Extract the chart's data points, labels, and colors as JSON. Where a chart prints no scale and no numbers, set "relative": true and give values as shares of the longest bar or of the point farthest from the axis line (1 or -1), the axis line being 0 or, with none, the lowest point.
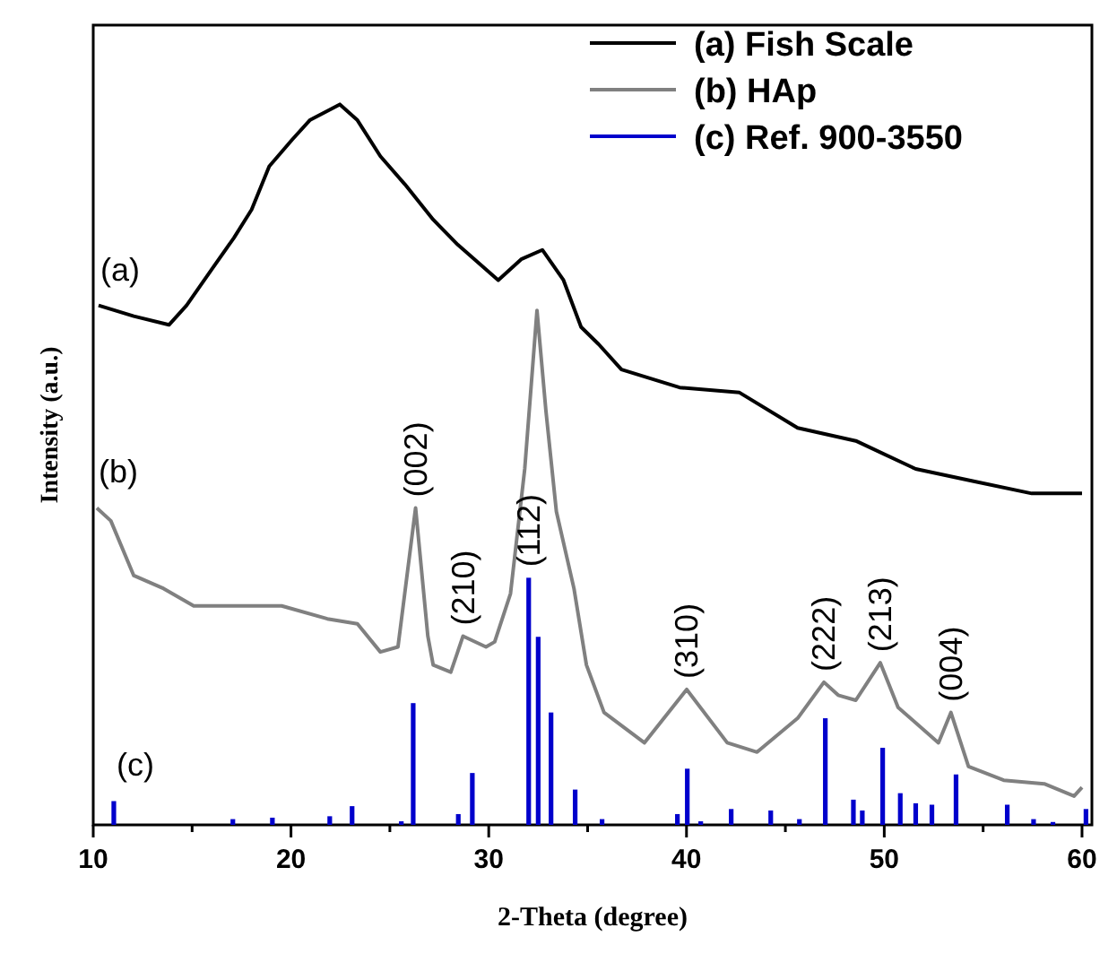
{
  "chart_data": {
    "type": "line",
    "relative": true,
    "xlabel": "2-Theta (degree)",
    "ylabel": "Intensity (a.u.)",
    "xlim": [
      10,
      60.5
    ],
    "xticks": [
      10,
      {
        "value": 15,
        "label": null
      },
      20,
      {
        "value": 25,
        "label": null
      },
      30,
      {
        "value": 35,
        "label": null
      },
      40,
      {
        "value": 45,
        "label": null
      },
      50,
      {
        "value": 55,
        "label": null
      },
      60
    ],
    "legend": "top right",
    "grid": false,
    "series": [
      {
        "name": "(a) Fish Scale",
        "color": "#000000",
        "x": [
          10.27,
          12.05,
          13.83,
          14.72,
          15.97,
          17.12,
          18.01,
          18.9,
          20.06,
          20.95,
          22.47,
          23.36,
          24.52,
          25.76,
          27.19,
          28.44,
          30.48,
          31.64,
          32.71,
          33.78,
          34.67,
          35.56,
          36.71,
          39.65,
          42.68,
          45.62,
          48.56,
          51.59,
          54.52,
          57.46,
          60
        ],
        "values": [
          0.721,
          0.706,
          0.694,
          0.721,
          0.77,
          0.815,
          0.854,
          0.914,
          0.951,
          0.978,
          1,
          0.978,
          0.928,
          0.889,
          0.84,
          0.805,
          0.756,
          0.785,
          0.798,
          0.756,
          0.691,
          0.667,
          0.632,
          0.607,
          0.6,
          0.551,
          0.533,
          0.494,
          0.477,
          0.46,
          0.46
        ]
      },
      {
        "name": "(b) HAp",
        "color": "#808080",
        "x": [
          10.18,
          10.89,
          12.05,
          13.56,
          15.08,
          16.86,
          19.53,
          21.84,
          23.36,
          24.52,
          25.41,
          26.3,
          26.92,
          27.19,
          28.08,
          28.7,
          29.86,
          30.3,
          31.1,
          31.82,
          32.44,
          32.89,
          33.42,
          34.31,
          34.94,
          35.83,
          37.87,
          40.01,
          42.06,
          43.57,
          45.62,
          46.95,
          47.67,
          48.56,
          49.8,
          50.7,
          52.74,
          53.37,
          54.26,
          56.04,
          58.09,
          59.6,
          60
        ],
        "values": [
          0.44,
          0.422,
          0.346,
          0.328,
          0.304,
          0.304,
          0.304,
          0.286,
          0.279,
          0.24,
          0.247,
          0.44,
          0.262,
          0.222,
          0.212,
          0.262,
          0.247,
          0.254,
          0.321,
          0.494,
          0.714,
          0.575,
          0.435,
          0.328,
          0.222,
          0.156,
          0.114,
          0.188,
          0.114,
          0.101,
          0.148,
          0.198,
          0.18,
          0.173,
          0.225,
          0.163,
          0.114,
          0.156,
          0.081,
          0.062,
          0.057,
          0.04,
          0.052
        ]
      },
      {
        "name": "(c) Ref. 900-3550",
        "type": "bar",
        "color": "#0000cc",
        "x": [
          11.04,
          17.06,
          19.06,
          21.96,
          23.09,
          25.58,
          26.18,
          28.46,
          29.17,
          32.02,
          32.5,
          33.15,
          34.37,
          35.73,
          39.54,
          40.04,
          40.72,
          42.26,
          44.26,
          45.71,
          47.02,
          48.44,
          48.89,
          49.92,
          50.81,
          51.59,
          52.41,
          53.63,
          56.22,
          57.55,
          58.53,
          60.2
        ],
        "values": [
          0.033,
          0.008,
          0.01,
          0.012,
          0.026,
          0.005,
          0.169,
          0.015,
          0.072,
          0.343,
          0.261,
          0.156,
          0.049,
          0.008,
          0.015,
          0.078,
          0.005,
          0.022,
          0.02,
          0.008,
          0.148,
          0.035,
          0.02,
          0.107,
          0.044,
          0.03,
          0.028,
          0.07,
          0.028,
          0.008,
          0.004,
          0.022
        ]
      }
    ],
    "annotations": [
      {
        "text": "(a)",
        "x": 10.27,
        "y": 0.721
      },
      {
        "text": "(b)",
        "x": 10.18,
        "y": 0.44
      },
      {
        "text": "(c)",
        "x": 11.04,
        "y": 0.033
      },
      {
        "text": "(002)",
        "x": 26.3,
        "y": 0.44
      },
      {
        "text": "(210)",
        "x": 28.7,
        "y": 0.262
      },
      {
        "text": "(112)",
        "x": 32.02,
        "y": 0.343
      },
      {
        "text": "(310)",
        "x": 40.01,
        "y": 0.188
      },
      {
        "text": "(222)",
        "x": 46.95,
        "y": 0.198
      },
      {
        "text": "(213)",
        "x": 49.8,
        "y": 0.225
      },
      {
        "text": "(004)",
        "x": 53.37,
        "y": 0.156
      }
    ]
  }
}
